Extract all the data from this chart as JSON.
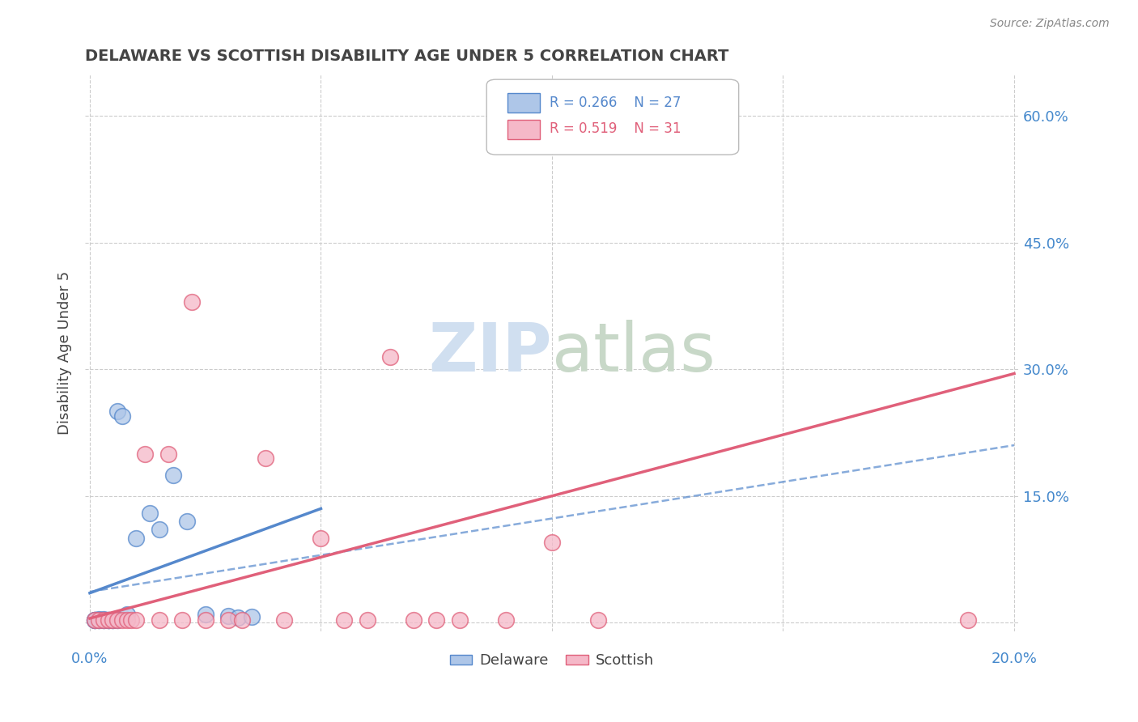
{
  "title": "DELAWARE VS SCOTTISH DISABILITY AGE UNDER 5 CORRELATION CHART",
  "source": "Source: ZipAtlas.com",
  "ylabel": "Disability Age Under 5",
  "right_yticklabels": [
    "",
    "15.0%",
    "30.0%",
    "45.0%",
    "60.0%"
  ],
  "right_ytick_vals": [
    0.0,
    0.15,
    0.3,
    0.45,
    0.6
  ],
  "legend_blue_r": "R = 0.266",
  "legend_blue_n": "N = 27",
  "legend_pink_r": "R = 0.519",
  "legend_pink_n": "N = 31",
  "blue_fill": "#aec6e8",
  "blue_edge": "#5588cc",
  "pink_fill": "#f5b8c8",
  "pink_edge": "#e0607a",
  "blue_line_color": "#5588cc",
  "pink_line_color": "#e0607a",
  "background_color": "#ffffff",
  "grid_color": "#cccccc",
  "title_color": "#444444",
  "axis_label_color": "#4488cc",
  "watermark_color": "#d0dff0",
  "xlim": [
    0.0,
    0.2
  ],
  "ylim": [
    0.0,
    0.65
  ],
  "blue_scatter_x": [
    0.001,
    0.002,
    0.002,
    0.003,
    0.003,
    0.004,
    0.004,
    0.005,
    0.006,
    0.007,
    0.008,
    0.01,
    0.013,
    0.015,
    0.018,
    0.021,
    0.025,
    0.03,
    0.032,
    0.035,
    0.004,
    0.005,
    0.006,
    0.003,
    0.002,
    0.001,
    0.001
  ],
  "blue_scatter_y": [
    0.003,
    0.004,
    0.003,
    0.003,
    0.004,
    0.003,
    0.003,
    0.003,
    0.25,
    0.245,
    0.01,
    0.1,
    0.13,
    0.11,
    0.175,
    0.12,
    0.01,
    0.008,
    0.006,
    0.007,
    0.003,
    0.003,
    0.003,
    0.003,
    0.003,
    0.003,
    0.003
  ],
  "pink_scatter_x": [
    0.001,
    0.002,
    0.003,
    0.004,
    0.005,
    0.006,
    0.007,
    0.008,
    0.009,
    0.01,
    0.012,
    0.015,
    0.017,
    0.02,
    0.022,
    0.025,
    0.03,
    0.033,
    0.038,
    0.042,
    0.05,
    0.055,
    0.06,
    0.065,
    0.07,
    0.075,
    0.08,
    0.09,
    0.1,
    0.11,
    0.19
  ],
  "pink_scatter_y": [
    0.003,
    0.003,
    0.003,
    0.003,
    0.003,
    0.003,
    0.003,
    0.003,
    0.003,
    0.003,
    0.2,
    0.003,
    0.2,
    0.003,
    0.38,
    0.003,
    0.003,
    0.003,
    0.195,
    0.003,
    0.1,
    0.003,
    0.003,
    0.315,
    0.003,
    0.003,
    0.003,
    0.003,
    0.095,
    0.003,
    0.003
  ],
  "blue_trend_x": [
    0.0,
    0.05
  ],
  "blue_trend_y": [
    0.035,
    0.135
  ],
  "pink_trend_x": [
    0.0,
    0.2
  ],
  "pink_trend_y": [
    0.005,
    0.295
  ]
}
